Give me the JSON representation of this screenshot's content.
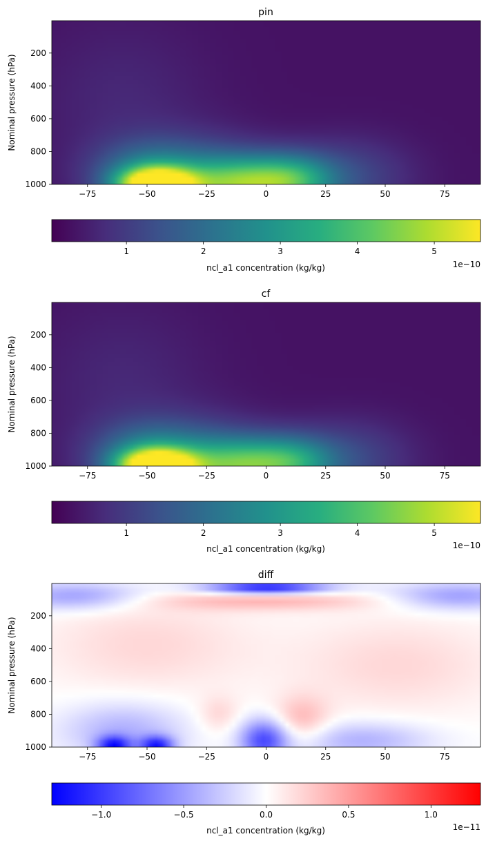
{
  "chart_data": [
    {
      "type": "heatmap",
      "title": "pin",
      "xlabel": "",
      "ylabel": "Nominal pressure (hPa)",
      "xlim": [
        -90,
        90
      ],
      "ylim": [
        1000,
        3
      ],
      "xticks": [
        -75,
        -50,
        -25,
        0,
        25,
        50,
        75
      ],
      "yticks": [
        200,
        400,
        600,
        800,
        1000
      ],
      "colormap": "viridis",
      "field": {
        "background": 0.3,
        "blobs": [
          {
            "lat": -46,
            "p": 1000,
            "amp": 5.3,
            "wlat": 11,
            "wp": 70
          },
          {
            "lat": -50,
            "p": 940,
            "amp": 1.8,
            "wlat": 16,
            "wp": 140
          },
          {
            "lat": -12,
            "p": 990,
            "amp": 2.4,
            "wlat": 14,
            "wp": 110
          },
          {
            "lat": 10,
            "p": 975,
            "amp": 2.9,
            "wlat": 13,
            "wp": 110
          },
          {
            "lat": -25,
            "p": 1000,
            "amp": 1.6,
            "wlat": 20,
            "wp": 180
          },
          {
            "lat": -60,
            "p": 500,
            "amp": 0.35,
            "wlat": 25,
            "wp": 350
          },
          {
            "lat": 35,
            "p": 950,
            "amp": 0.9,
            "wlat": 18,
            "wp": 160
          }
        ]
      },
      "colorbar": {
        "label": "ncl_a1 concentration (kg/kg)",
        "ticks": [
          1,
          2,
          3,
          4,
          5
        ],
        "range": [
          0.03,
          5.6
        ],
        "offset_text": "1e−10"
      }
    },
    {
      "type": "heatmap",
      "title": "cf",
      "xlabel": "",
      "ylabel": "Nominal pressure (hPa)",
      "xlim": [
        -90,
        90
      ],
      "ylim": [
        1000,
        3
      ],
      "xticks": [
        -75,
        -50,
        -25,
        0,
        25,
        50,
        75
      ],
      "yticks": [
        200,
        400,
        600,
        800,
        1000
      ],
      "colormap": "viridis",
      "field": {
        "background": 0.3,
        "blobs": [
          {
            "lat": -46,
            "p": 1000,
            "amp": 5.4,
            "wlat": 11,
            "wp": 70
          },
          {
            "lat": -50,
            "p": 940,
            "amp": 1.9,
            "wlat": 16,
            "wp": 140
          },
          {
            "lat": -12,
            "p": 990,
            "amp": 2.2,
            "wlat": 14,
            "wp": 110
          },
          {
            "lat": 10,
            "p": 975,
            "amp": 2.5,
            "wlat": 13,
            "wp": 110
          },
          {
            "lat": -25,
            "p": 1000,
            "amp": 1.6,
            "wlat": 20,
            "wp": 180
          },
          {
            "lat": -60,
            "p": 500,
            "amp": 0.35,
            "wlat": 25,
            "wp": 350
          },
          {
            "lat": 35,
            "p": 950,
            "amp": 0.9,
            "wlat": 18,
            "wp": 160
          }
        ]
      },
      "colorbar": {
        "label": "ncl_a1 concentration (kg/kg)",
        "ticks": [
          1,
          2,
          3,
          4,
          5
        ],
        "range": [
          0.03,
          5.6
        ],
        "offset_text": "1e−10"
      }
    },
    {
      "type": "heatmap",
      "title": "diff",
      "xlabel": "",
      "ylabel": "Nominal pressure (hPa)",
      "xlim": [
        -90,
        90
      ],
      "ylim": [
        1000,
        3
      ],
      "xticks": [
        -75,
        -50,
        -25,
        0,
        25,
        50,
        75
      ],
      "yticks": [
        200,
        400,
        600,
        800,
        1000
      ],
      "colormap": "bwr",
      "field": {
        "background": 0.0,
        "blobs": [
          {
            "lat": 0,
            "p": 30,
            "amp": -1.2,
            "wlat": 18,
            "wp": 25
          },
          {
            "lat": -80,
            "p": 80,
            "amp": -0.5,
            "wlat": 20,
            "wp": 60
          },
          {
            "lat": 80,
            "p": 80,
            "amp": -0.5,
            "wlat": 20,
            "wp": 60
          },
          {
            "lat": 0,
            "p": 110,
            "amp": 0.35,
            "wlat": 35,
            "wp": 40
          },
          {
            "lat": -50,
            "p": 380,
            "amp": 0.2,
            "wlat": 30,
            "wp": 200
          },
          {
            "lat": 55,
            "p": 500,
            "amp": 0.2,
            "wlat": 30,
            "wp": 200
          },
          {
            "lat": 15,
            "p": 830,
            "amp": 0.35,
            "wlat": 8,
            "wp": 100
          },
          {
            "lat": -20,
            "p": 800,
            "amp": 0.2,
            "wlat": 6,
            "wp": 80
          },
          {
            "lat": -1,
            "p": 960,
            "amp": -0.9,
            "wlat": 7,
            "wp": 90
          },
          {
            "lat": -64,
            "p": 990,
            "amp": -1.0,
            "wlat": 5,
            "wp": 40
          },
          {
            "lat": -46,
            "p": 990,
            "amp": -1.0,
            "wlat": 5,
            "wp": 40
          },
          {
            "lat": -60,
            "p": 900,
            "amp": -0.4,
            "wlat": 18,
            "wp": 120
          },
          {
            "lat": 40,
            "p": 960,
            "amp": -0.4,
            "wlat": 20,
            "wp": 80
          }
        ]
      },
      "colorbar": {
        "label": "ncl_a1 concentration (kg/kg)",
        "ticks": [
          -1.0,
          -0.5,
          0.0,
          0.5,
          1.0
        ],
        "tick_labels": [
          "−1.0",
          "−0.5",
          "0.0",
          "0.5",
          "1.0"
        ],
        "range": [
          -1.3,
          1.3
        ],
        "offset_text": "1e−11"
      }
    }
  ]
}
